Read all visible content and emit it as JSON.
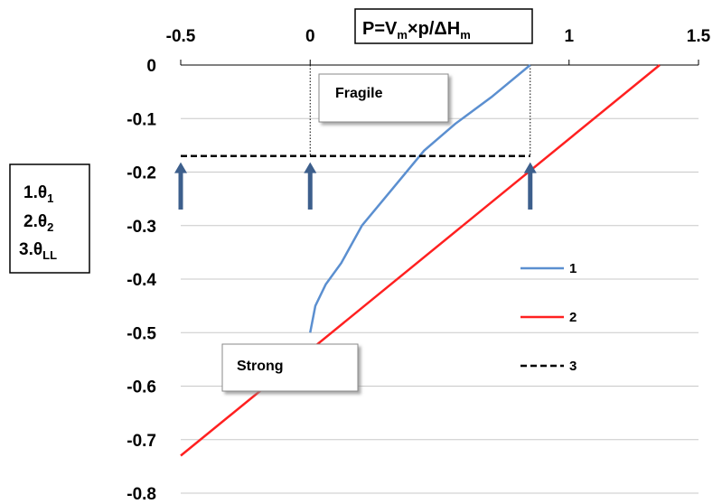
{
  "chart_data": {
    "type": "line",
    "title": "P=V×p/ΔH",
    "title_parts": {
      "P": "P=V",
      "sub_m1": "m",
      "mid": "×p/ΔH",
      "sub_m2": "m"
    },
    "x_axis": {
      "position": "top",
      "ticks": [
        "-0.5",
        "0",
        "1",
        "1.5"
      ],
      "range": [
        -0.5,
        1.5
      ]
    },
    "y_axis": {
      "ticks": [
        "0",
        "-0.1",
        "-0.2",
        "-0.3",
        "-0.4",
        "-0.5",
        "-0.6",
        "-0.7",
        "-0.8"
      ],
      "range": [
        -0.8,
        0
      ]
    },
    "grid": "horizontal",
    "side_label": {
      "line1_prefix": "1.θ",
      "line1_sub": "1",
      "line2_prefix": "2.θ",
      "line2_sub": "2",
      "line3_prefix": "3.θ",
      "line3_sub": "LL"
    },
    "annotations": {
      "fragile": "Fragile",
      "strong": "Strong"
    },
    "series": [
      {
        "name": "1",
        "color": "#5b8fd0",
        "style": "solid",
        "x": [
          0,
          0.02,
          0.06,
          0.12,
          0.2,
          0.32,
          0.44,
          0.56,
          0.7,
          0.85
        ],
        "y": [
          -0.5,
          -0.45,
          -0.41,
          -0.37,
          -0.3,
          -0.23,
          -0.16,
          -0.11,
          -0.06,
          0
        ]
      },
      {
        "name": "2",
        "color": "#ff2020",
        "style": "solid",
        "x": [
          -0.5,
          1.35
        ],
        "y": [
          -0.73,
          0
        ]
      },
      {
        "name": "3",
        "color": "#000000",
        "style": "dashed",
        "x": [
          -0.5,
          0.85
        ],
        "y": [
          -0.17,
          -0.17
        ]
      }
    ],
    "arrows_x": [
      -0.5,
      0,
      0.85
    ],
    "vertical_dotted_x": [
      0,
      0.85
    ],
    "legend": [
      "1",
      "2",
      "3"
    ]
  }
}
